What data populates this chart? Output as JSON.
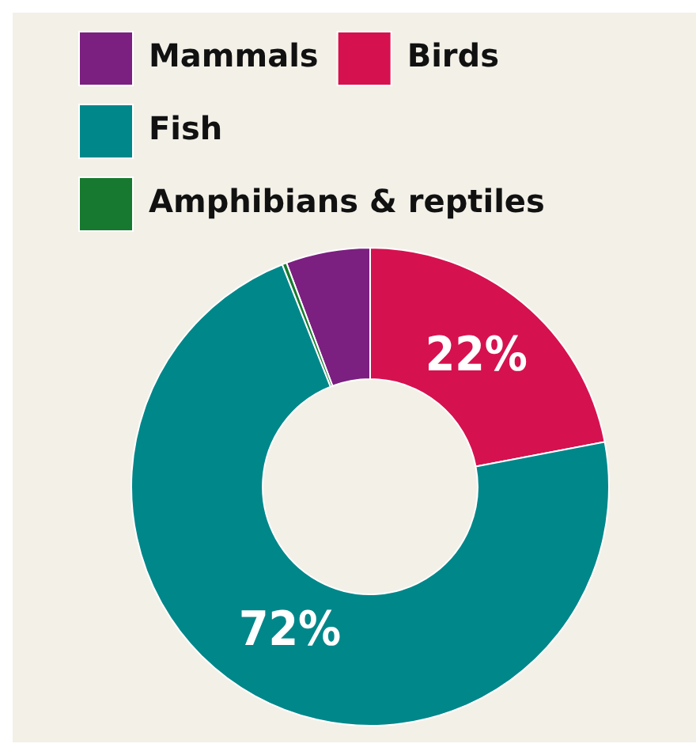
{
  "chart_data": {
    "type": "donut",
    "categories": [
      "Mammals",
      "Birds",
      "Fish",
      "Amphibians & reptiles"
    ],
    "values": [
      5.7,
      22,
      72,
      0.3
    ],
    "colors": [
      "#7b1f80",
      "#d6114f",
      "#00878a",
      "#17792f"
    ],
    "value_labels": [
      null,
      "22%",
      "72%",
      null
    ],
    "legend": "top"
  }
}
